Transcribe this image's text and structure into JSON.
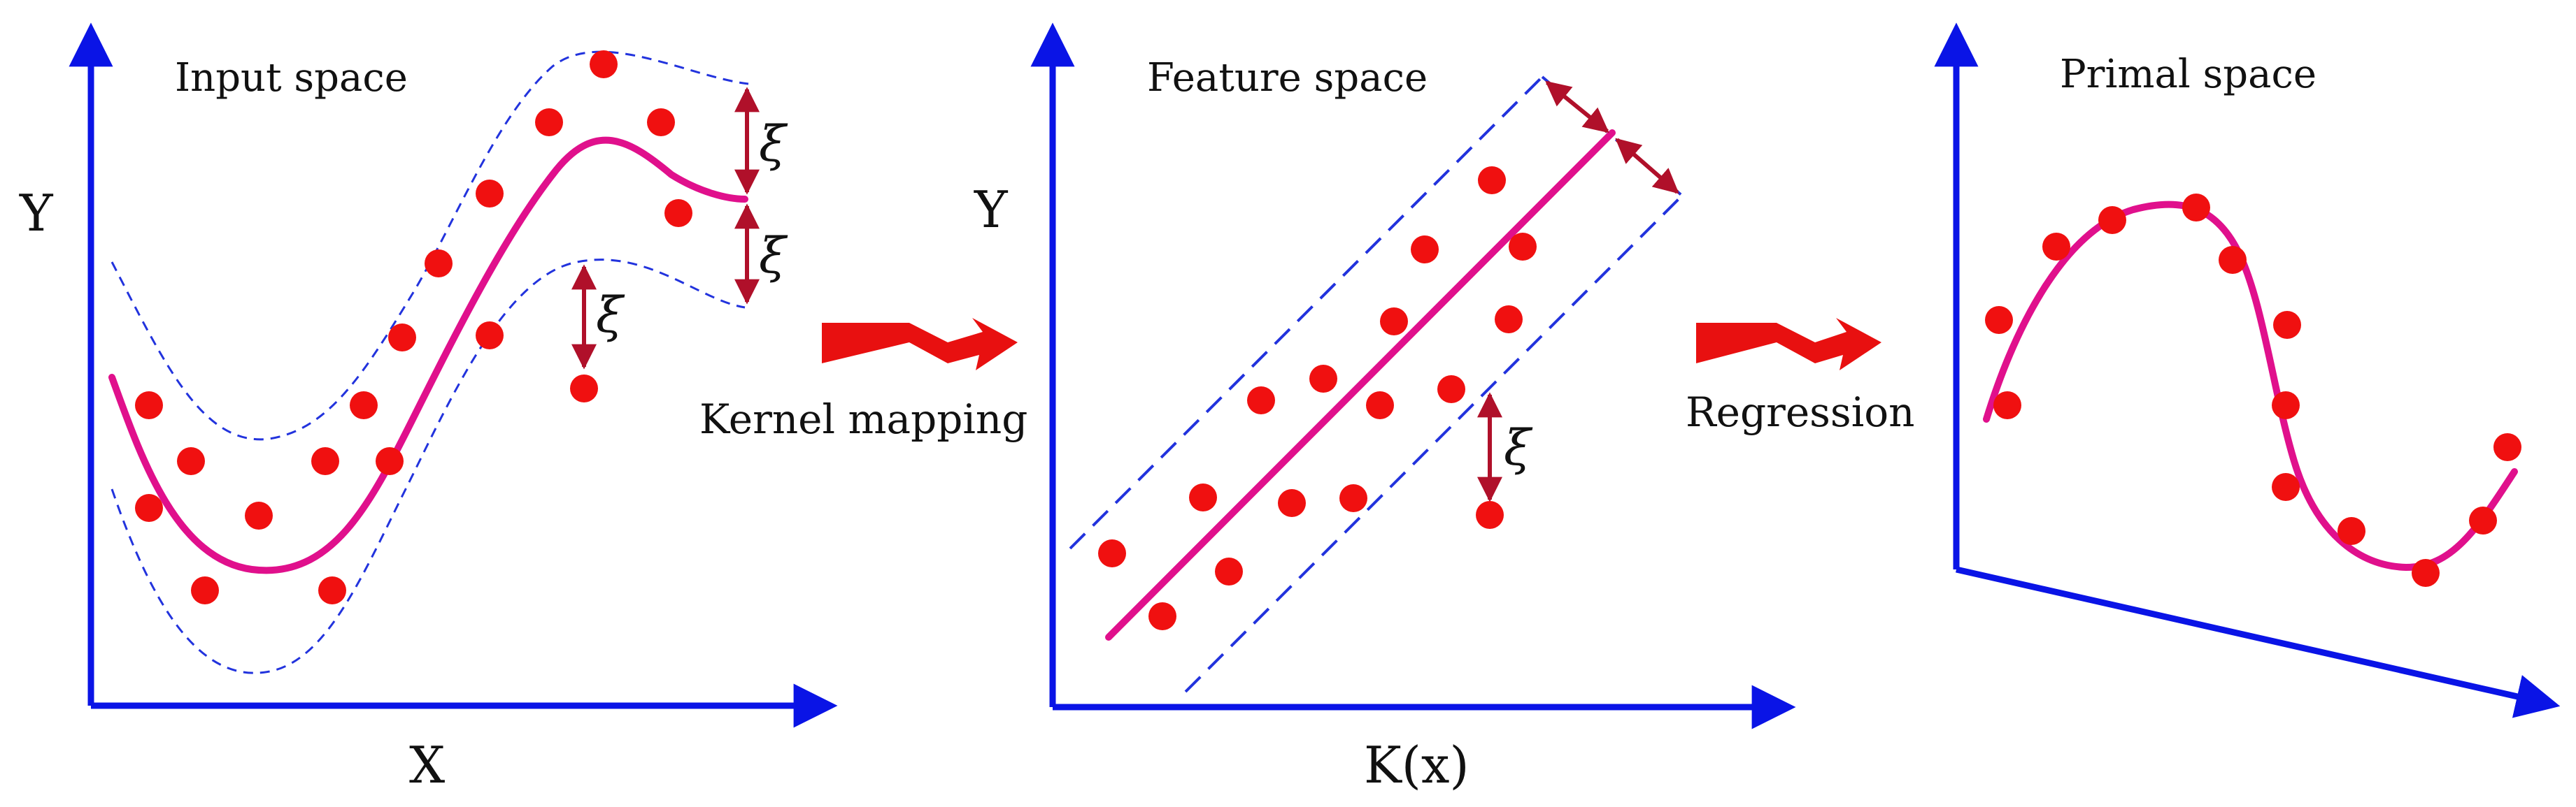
{
  "colors": {
    "axis": "#0a14e6",
    "curve": "#e0108c",
    "point": "#f01010",
    "arrow": "#e81010",
    "margin": "#b0102a",
    "band": "#2233dd"
  },
  "panels": {
    "input": {
      "title": "Input space",
      "x_label": "X",
      "y_label": "Y",
      "xi_label": "ξ"
    },
    "feature": {
      "title": "Feature space",
      "x_label": "K(x)",
      "y_label": "Y",
      "xi_label": "ξ"
    },
    "primal": {
      "title": "Primal space"
    }
  },
  "steps": {
    "kernel_mapping": "Kernel mapping",
    "regression": "Regression"
  },
  "icons": [
    "zigzag-arrow-icon",
    "double-arrow-icon"
  ]
}
